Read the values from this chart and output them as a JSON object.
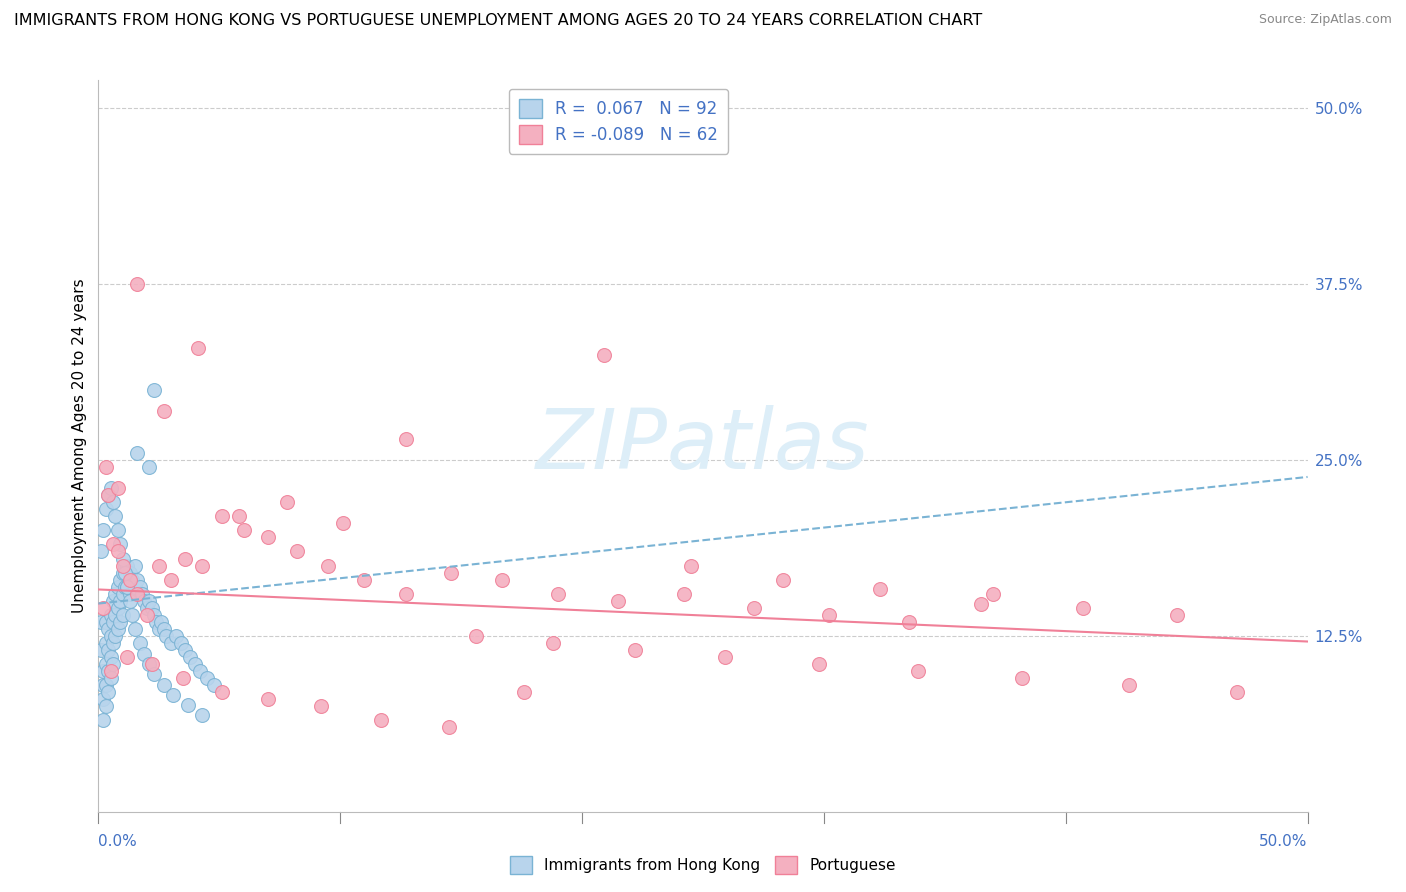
{
  "title": "IMMIGRANTS FROM HONG KONG VS PORTUGUESE UNEMPLOYMENT AMONG AGES 20 TO 24 YEARS CORRELATION CHART",
  "source": "Source: ZipAtlas.com",
  "ylabel": "Unemployment Among Ages 20 to 24 years",
  "blue_scatter_x": [
    0.001,
    0.001,
    0.002,
    0.002,
    0.002,
    0.002,
    0.003,
    0.003,
    0.003,
    0.003,
    0.003,
    0.004,
    0.004,
    0.004,
    0.004,
    0.005,
    0.005,
    0.005,
    0.005,
    0.006,
    0.006,
    0.006,
    0.006,
    0.007,
    0.007,
    0.007,
    0.008,
    0.008,
    0.008,
    0.009,
    0.009,
    0.009,
    0.01,
    0.01,
    0.01,
    0.011,
    0.011,
    0.012,
    0.012,
    0.013,
    0.013,
    0.014,
    0.015,
    0.015,
    0.016,
    0.017,
    0.018,
    0.019,
    0.02,
    0.021,
    0.022,
    0.023,
    0.024,
    0.025,
    0.026,
    0.027,
    0.028,
    0.03,
    0.032,
    0.034,
    0.036,
    0.038,
    0.04,
    0.042,
    0.045,
    0.048,
    0.001,
    0.002,
    0.003,
    0.004,
    0.005,
    0.006,
    0.007,
    0.008,
    0.009,
    0.01,
    0.011,
    0.012,
    0.013,
    0.014,
    0.015,
    0.017,
    0.019,
    0.021,
    0.023,
    0.027,
    0.031,
    0.037,
    0.043,
    0.023,
    0.016,
    0.021
  ],
  "blue_scatter_y": [
    0.135,
    0.115,
    0.1,
    0.09,
    0.08,
    0.065,
    0.135,
    0.12,
    0.105,
    0.09,
    0.075,
    0.13,
    0.115,
    0.1,
    0.085,
    0.14,
    0.125,
    0.11,
    0.095,
    0.15,
    0.135,
    0.12,
    0.105,
    0.155,
    0.14,
    0.125,
    0.16,
    0.145,
    0.13,
    0.165,
    0.15,
    0.135,
    0.17,
    0.155,
    0.14,
    0.175,
    0.16,
    0.175,
    0.16,
    0.17,
    0.155,
    0.165,
    0.175,
    0.16,
    0.165,
    0.16,
    0.155,
    0.15,
    0.145,
    0.15,
    0.145,
    0.14,
    0.135,
    0.13,
    0.135,
    0.13,
    0.125,
    0.12,
    0.125,
    0.12,
    0.115,
    0.11,
    0.105,
    0.1,
    0.095,
    0.09,
    0.185,
    0.2,
    0.215,
    0.225,
    0.23,
    0.22,
    0.21,
    0.2,
    0.19,
    0.18,
    0.17,
    0.16,
    0.15,
    0.14,
    0.13,
    0.12,
    0.112,
    0.105,
    0.098,
    0.09,
    0.083,
    0.076,
    0.069,
    0.3,
    0.255,
    0.245
  ],
  "pink_scatter_x": [
    0.002,
    0.004,
    0.006,
    0.008,
    0.01,
    0.013,
    0.016,
    0.02,
    0.025,
    0.03,
    0.036,
    0.043,
    0.051,
    0.06,
    0.07,
    0.082,
    0.095,
    0.11,
    0.127,
    0.146,
    0.167,
    0.19,
    0.215,
    0.242,
    0.271,
    0.302,
    0.335,
    0.37,
    0.407,
    0.446,
    0.003,
    0.008,
    0.016,
    0.027,
    0.041,
    0.058,
    0.078,
    0.101,
    0.127,
    0.156,
    0.188,
    0.222,
    0.259,
    0.298,
    0.339,
    0.382,
    0.426,
    0.471,
    0.005,
    0.012,
    0.022,
    0.035,
    0.051,
    0.07,
    0.092,
    0.117,
    0.145,
    0.176,
    0.209,
    0.245,
    0.283,
    0.323,
    0.365
  ],
  "pink_scatter_y": [
    0.145,
    0.225,
    0.19,
    0.185,
    0.175,
    0.165,
    0.155,
    0.14,
    0.175,
    0.165,
    0.18,
    0.175,
    0.21,
    0.2,
    0.195,
    0.185,
    0.175,
    0.165,
    0.155,
    0.17,
    0.165,
    0.155,
    0.15,
    0.155,
    0.145,
    0.14,
    0.135,
    0.155,
    0.145,
    0.14,
    0.245,
    0.23,
    0.375,
    0.285,
    0.33,
    0.21,
    0.22,
    0.205,
    0.265,
    0.125,
    0.12,
    0.115,
    0.11,
    0.105,
    0.1,
    0.095,
    0.09,
    0.085,
    0.1,
    0.11,
    0.105,
    0.095,
    0.085,
    0.08,
    0.075,
    0.065,
    0.06,
    0.085,
    0.325,
    0.175,
    0.165,
    0.158,
    0.148
  ],
  "blue_line_x": [
    0.0,
    0.5
  ],
  "blue_line_y_start": 0.148,
  "blue_line_y_end": 0.238,
  "pink_line_x": [
    0.0,
    0.5
  ],
  "pink_line_y_start": 0.158,
  "pink_line_y_end": 0.121,
  "blue_color": "#7ab3d4",
  "blue_scatter_face": "#b8d4ec",
  "blue_scatter_edge": "#7ab3d4",
  "pink_color": "#f08098",
  "pink_scatter_face": "#f4b0c0",
  "pink_scatter_edge": "#f08098",
  "grid_color": "#cccccc",
  "watermark_text": "ZIPatlas",
  "watermark_color": "#ddeef8",
  "legend_border_color": "#bbbbbb",
  "title_fontsize": 11.5,
  "axis_label_fontsize": 11,
  "tick_fontsize": 11,
  "source_fontsize": 9,
  "legend_fontsize": 12,
  "xlim": [
    0.0,
    0.5
  ],
  "ylim": [
    0.0,
    0.52
  ],
  "yticks": [
    0.0,
    0.125,
    0.25,
    0.375,
    0.5
  ],
  "yticklabels": [
    "",
    "12.5%",
    "25.0%",
    "37.5%",
    "50.0%"
  ],
  "xtick_positions": [
    0.0,
    0.1,
    0.2,
    0.3,
    0.4,
    0.5
  ]
}
